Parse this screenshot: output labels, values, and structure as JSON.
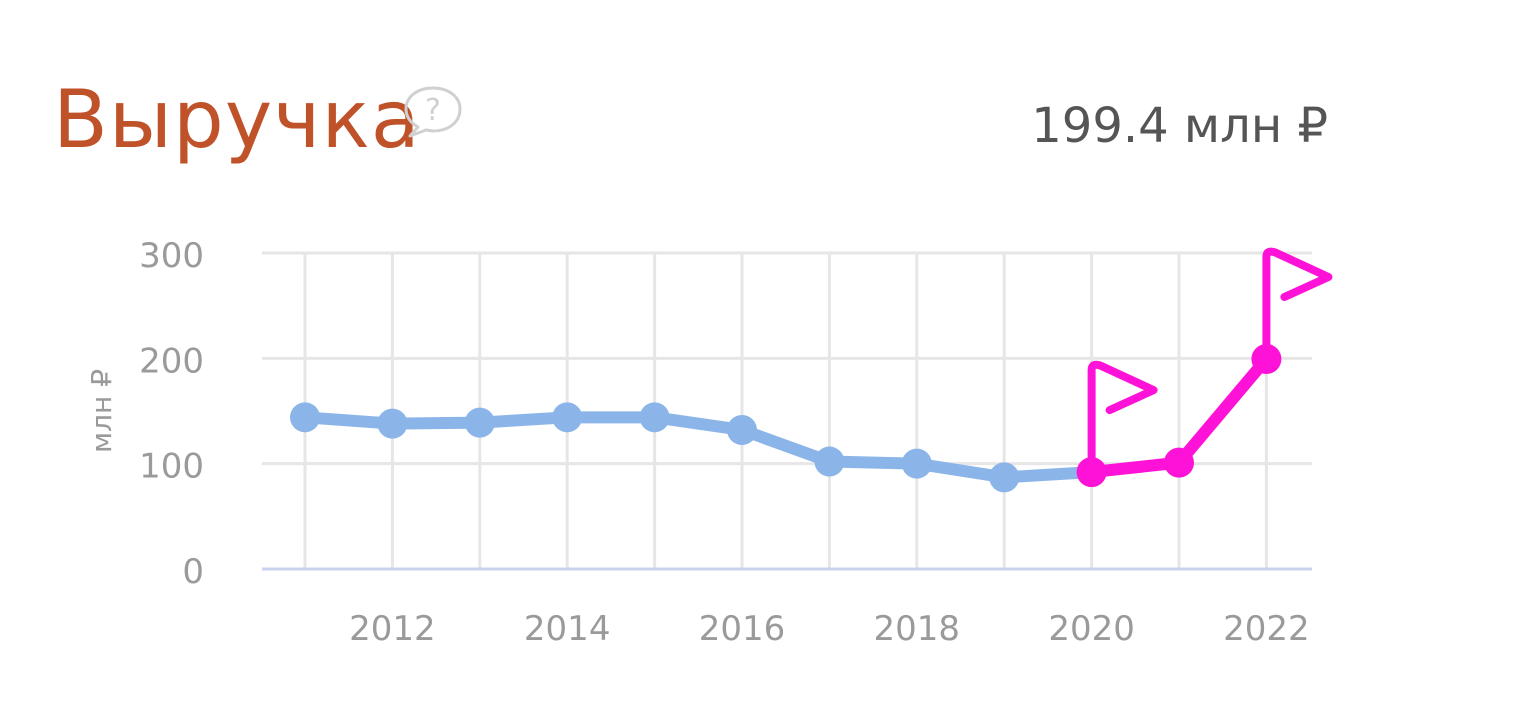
{
  "header": {
    "title": "Выручка",
    "help_icon": "question-bubble-icon",
    "total_value": "199.4 млн ₽"
  },
  "colors": {
    "title": "#c0522a",
    "line": "#8bb5e8",
    "highlight": "#ff12d8",
    "grid": "#e6e6e6",
    "axis": "#c9d3ee",
    "tick_text": "#9a9a9a"
  },
  "chart_data": {
    "type": "line",
    "title": "",
    "xlabel": "",
    "ylabel": "млн ₽",
    "x": [
      2011,
      2012,
      2013,
      2014,
      2015,
      2016,
      2017,
      2018,
      2019,
      2020,
      2021,
      2022
    ],
    "values": [
      144,
      138,
      139,
      144,
      144,
      132,
      102,
      100,
      87,
      92,
      101,
      199.4
    ],
    "ylim": [
      0,
      300
    ],
    "yticks": [
      "0",
      "100",
      "200",
      "300"
    ],
    "xticks": [
      "2012",
      "2014",
      "2016",
      "2018",
      "2020",
      "2022"
    ],
    "highlight_from": 2020,
    "flags_at": [
      2020,
      2022
    ],
    "grid": true
  }
}
